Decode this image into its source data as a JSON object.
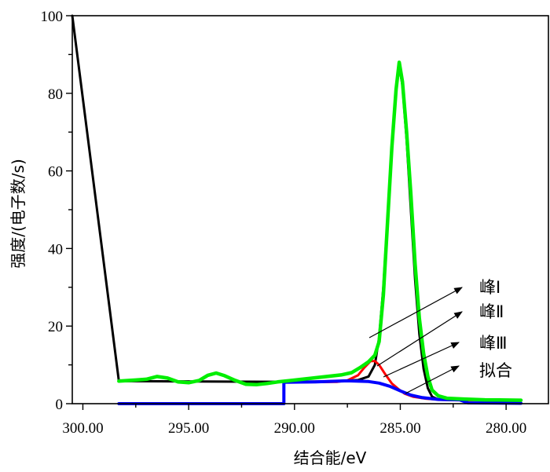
{
  "chart_data": {
    "type": "line",
    "xlabel": "结合能/eV",
    "ylabel": "强度/(电子数/s)",
    "xlim": [
      300.5,
      278.0
    ],
    "ylim": [
      0,
      100
    ],
    "x_reversed": true,
    "x_ticks": [
      300,
      295,
      290,
      285,
      280
    ],
    "x_tick_labels": [
      "300.00",
      "295.00",
      "290.00",
      "285.00",
      "280.00"
    ],
    "y_ticks": [
      0,
      20,
      40,
      60,
      80,
      100
    ],
    "y_tick_labels": [
      "0",
      "20",
      "40",
      "60",
      "80",
      "100"
    ],
    "grid": false,
    "legend": {
      "placement": "right",
      "entries": [
        "峰Ⅰ",
        "峰Ⅱ",
        "峰Ⅲ",
        "拟合"
      ]
    },
    "series": [
      {
        "color": "#000000",
        "points": [
          [
            300.5,
            100
          ],
          [
            298.3,
            5.8
          ],
          [
            290,
            5.6
          ],
          [
            288,
            5.8
          ],
          [
            287,
            6.1
          ],
          [
            286.5,
            7
          ],
          [
            286.2,
            10
          ],
          [
            286.0,
            17
          ],
          [
            285.8,
            30
          ],
          [
            285.6,
            48
          ],
          [
            285.4,
            66
          ],
          [
            285.2,
            81
          ],
          [
            285.05,
            87
          ],
          [
            284.9,
            82
          ],
          [
            284.7,
            68
          ],
          [
            284.5,
            50
          ],
          [
            284.3,
            32
          ],
          [
            284.1,
            18
          ],
          [
            283.9,
            9
          ],
          [
            283.7,
            4
          ],
          [
            283.5,
            1.8
          ],
          [
            283.2,
            1.1
          ],
          [
            282.8,
            1.0
          ],
          [
            281,
            0.9
          ],
          [
            279.3,
            0.8
          ]
        ]
      },
      {
        "color": "#ff0000",
        "points": [
          [
            290,
            5.5
          ],
          [
            288,
            5.6
          ],
          [
            287.5,
            6.0
          ],
          [
            287.0,
            7.3
          ],
          [
            286.7,
            9.3
          ],
          [
            286.4,
            11.0
          ],
          [
            286.2,
            11.0
          ],
          [
            286.0,
            10.0
          ],
          [
            285.7,
            7.5
          ],
          [
            285.4,
            5.2
          ],
          [
            285.1,
            3.8
          ],
          [
            284.8,
            2.6
          ],
          [
            284.4,
            1.8
          ],
          [
            283.8,
            1.3
          ],
          [
            283.0,
            1.0
          ],
          [
            281,
            0.9
          ],
          [
            279.3,
            0.8
          ]
        ]
      },
      {
        "color": "#0000ff",
        "points": [
          [
            298.3,
            0
          ],
          [
            290.5,
            0
          ],
          [
            290.5,
            5.5
          ],
          [
            289,
            5.6
          ],
          [
            287.5,
            5.9
          ],
          [
            286.5,
            5.7
          ],
          [
            286.0,
            5.3
          ],
          [
            285.5,
            4.5
          ],
          [
            285.0,
            3.3
          ],
          [
            284.5,
            2.2
          ],
          [
            284.0,
            1.6
          ],
          [
            283.2,
            1.1
          ],
          [
            282.2,
            1.0
          ],
          [
            281.8,
            0.2
          ],
          [
            279.3,
            0.1
          ]
        ]
      },
      {
        "color": "#00ee00",
        "points": [
          [
            298.3,
            5.8
          ],
          [
            297.5,
            6.1
          ],
          [
            297.0,
            6.3
          ],
          [
            296.5,
            7.0
          ],
          [
            296.0,
            6.6
          ],
          [
            295.5,
            5.6
          ],
          [
            295.0,
            5.4
          ],
          [
            294.5,
            6.0
          ],
          [
            294.1,
            7.3
          ],
          [
            293.7,
            7.9
          ],
          [
            293.3,
            7.2
          ],
          [
            292.8,
            6.0
          ],
          [
            292.3,
            5.0
          ],
          [
            291.8,
            4.9
          ],
          [
            291.3,
            5.2
          ],
          [
            290.8,
            5.6
          ],
          [
            290.3,
            5.9
          ],
          [
            289.8,
            6.2
          ],
          [
            289.3,
            6.5
          ],
          [
            288.8,
            6.8
          ],
          [
            288.3,
            7.1
          ],
          [
            287.8,
            7.4
          ],
          [
            287.3,
            8.0
          ],
          [
            286.9,
            9.3
          ],
          [
            286.5,
            10.8
          ],
          [
            286.2,
            12.5
          ],
          [
            286.0,
            16
          ],
          [
            285.8,
            28
          ],
          [
            285.6,
            47
          ],
          [
            285.4,
            66
          ],
          [
            285.2,
            81
          ],
          [
            285.05,
            88
          ],
          [
            284.9,
            83
          ],
          [
            284.7,
            70
          ],
          [
            284.5,
            54
          ],
          [
            284.3,
            36
          ],
          [
            284.1,
            22
          ],
          [
            283.9,
            13
          ],
          [
            283.7,
            7
          ],
          [
            283.5,
            3.5
          ],
          [
            283.2,
            2.0
          ],
          [
            282.8,
            1.4
          ],
          [
            282.0,
            1.2
          ],
          [
            281,
            1.0
          ],
          [
            279.3,
            0.9
          ]
        ]
      }
    ]
  }
}
